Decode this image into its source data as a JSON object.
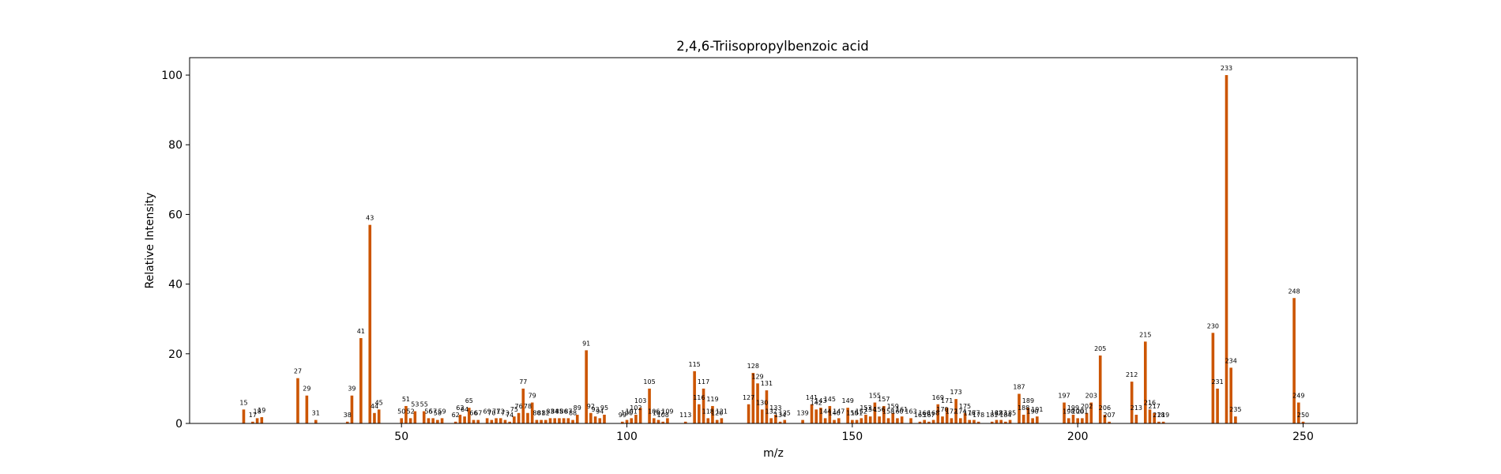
{
  "chart_data": {
    "type": "bar",
    "title": "2,4,6-Triisopropylbenzoic acid",
    "xlabel": "m/z",
    "ylabel": "Relative Intensity",
    "xlim": [
      3,
      262
    ],
    "ylim": [
      0,
      105
    ],
    "xticks": [
      50,
      100,
      150,
      200,
      250
    ],
    "yticks": [
      0,
      20,
      40,
      60,
      80,
      100
    ],
    "bar_color": "#cc5500",
    "grid": false,
    "points": [
      [
        15,
        4.0
      ],
      [
        17,
        0.5
      ],
      [
        18,
        1.5
      ],
      [
        19,
        1.8
      ],
      [
        27,
        13.0
      ],
      [
        29,
        8.0
      ],
      [
        31,
        1.0
      ],
      [
        38,
        0.5
      ],
      [
        39,
        8.0
      ],
      [
        41,
        24.5
      ],
      [
        43,
        57.0
      ],
      [
        44,
        3.0
      ],
      [
        45,
        4.0
      ],
      [
        50,
        1.5
      ],
      [
        51,
        5.0
      ],
      [
        52,
        1.5
      ],
      [
        53,
        3.5
      ],
      [
        55,
        3.5
      ],
      [
        56,
        1.5
      ],
      [
        57,
        1.5
      ],
      [
        58,
        1.0
      ],
      [
        59,
        1.5
      ],
      [
        62,
        0.5
      ],
      [
        63,
        2.5
      ],
      [
        64,
        2.0
      ],
      [
        65,
        4.5
      ],
      [
        66,
        1.0
      ],
      [
        67,
        1.0
      ],
      [
        69,
        1.5
      ],
      [
        70,
        1.0
      ],
      [
        71,
        1.5
      ],
      [
        72,
        1.5
      ],
      [
        73,
        1.0
      ],
      [
        74,
        0.5
      ],
      [
        75,
        2.0
      ],
      [
        76,
        3.0
      ],
      [
        77,
        10.0
      ],
      [
        78,
        3.0
      ],
      [
        79,
        6.0
      ],
      [
        80,
        1.0
      ],
      [
        81,
        1.0
      ],
      [
        82,
        1.0
      ],
      [
        83,
        1.5
      ],
      [
        84,
        1.5
      ],
      [
        85,
        1.5
      ],
      [
        86,
        1.5
      ],
      [
        87,
        1.5
      ],
      [
        88,
        1.0
      ],
      [
        89,
        2.5
      ],
      [
        91,
        21.0
      ],
      [
        92,
        3.0
      ],
      [
        93,
        2.0
      ],
      [
        94,
        1.5
      ],
      [
        95,
        2.5
      ],
      [
        99,
        0.5
      ],
      [
        100,
        1.0
      ],
      [
        101,
        1.5
      ],
      [
        102,
        2.5
      ],
      [
        103,
        4.5
      ],
      [
        105,
        10.0
      ],
      [
        106,
        1.5
      ],
      [
        107,
        1.0
      ],
      [
        108,
        0.5
      ],
      [
        109,
        1.5
      ],
      [
        113,
        0.5
      ],
      [
        115,
        15.0
      ],
      [
        116,
        5.5
      ],
      [
        117,
        10.0
      ],
      [
        118,
        1.5
      ],
      [
        119,
        5.0
      ],
      [
        120,
        1.0
      ],
      [
        121,
        1.5
      ],
      [
        127,
        5.5
      ],
      [
        128,
        14.5
      ],
      [
        129,
        11.5
      ],
      [
        130,
        4.0
      ],
      [
        131,
        9.5
      ],
      [
        132,
        1.5
      ],
      [
        133,
        2.5
      ],
      [
        134,
        0.5
      ],
      [
        135,
        1.0
      ],
      [
        139,
        1.0
      ],
      [
        141,
        5.5
      ],
      [
        142,
        4.0
      ],
      [
        143,
        4.5
      ],
      [
        144,
        1.5
      ],
      [
        145,
        5.0
      ],
      [
        146,
        1.0
      ],
      [
        147,
        1.5
      ],
      [
        149,
        4.5
      ],
      [
        150,
        1.0
      ],
      [
        151,
        1.0
      ],
      [
        152,
        1.5
      ],
      [
        153,
        2.5
      ],
      [
        154,
        2.0
      ],
      [
        155,
        6.0
      ],
      [
        156,
        2.0
      ],
      [
        157,
        5.0
      ],
      [
        158,
        1.5
      ],
      [
        159,
        3.0
      ],
      [
        160,
        1.5
      ],
      [
        161,
        2.0
      ],
      [
        163,
        1.5
      ],
      [
        165,
        0.5
      ],
      [
        166,
        1.0
      ],
      [
        167,
        0.5
      ],
      [
        168,
        1.0
      ],
      [
        169,
        5.5
      ],
      [
        170,
        2.0
      ],
      [
        171,
        4.5
      ],
      [
        172,
        1.5
      ],
      [
        173,
        7.0
      ],
      [
        174,
        1.5
      ],
      [
        175,
        3.0
      ],
      [
        176,
        1.0
      ],
      [
        177,
        1.0
      ],
      [
        178,
        0.5
      ],
      [
        181,
        0.5
      ],
      [
        182,
        1.0
      ],
      [
        183,
        1.0
      ],
      [
        184,
        0.5
      ],
      [
        185,
        1.0
      ],
      [
        187,
        8.5
      ],
      [
        188,
        2.5
      ],
      [
        189,
        4.5
      ],
      [
        190,
        1.5
      ],
      [
        191,
        2.0
      ],
      [
        197,
        6.0
      ],
      [
        198,
        1.5
      ],
      [
        199,
        2.5
      ],
      [
        200,
        1.5
      ],
      [
        201,
        1.5
      ],
      [
        202,
        3.0
      ],
      [
        203,
        6.0
      ],
      [
        205,
        19.5
      ],
      [
        206,
        2.5
      ],
      [
        207,
        0.5
      ],
      [
        212,
        12.0
      ],
      [
        213,
        2.5
      ],
      [
        215,
        23.5
      ],
      [
        216,
        4.0
      ],
      [
        217,
        3.0
      ],
      [
        218,
        0.5
      ],
      [
        219,
        0.5
      ],
      [
        230,
        26.0
      ],
      [
        231,
        10.0
      ],
      [
        233,
        100.0
      ],
      [
        234,
        16.0
      ],
      [
        235,
        2.0
      ],
      [
        248,
        36.0
      ],
      [
        249,
        6.0
      ],
      [
        250,
        0.5
      ]
    ]
  }
}
